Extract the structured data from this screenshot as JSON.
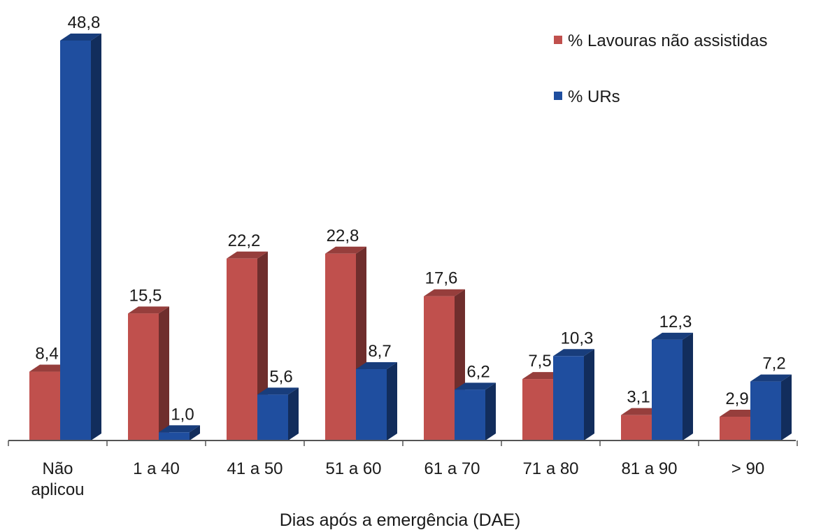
{
  "chart_data": {
    "type": "bar",
    "title": "",
    "xlabel": "Dias após a emergência (DAE)",
    "ylabel": "",
    "ylim": [
      0,
      50
    ],
    "grid": false,
    "legend_position": "top-right",
    "categories": [
      "Não\naplicou",
      "1 a 40",
      "41 a 50",
      "51 a 60",
      "61 a 70",
      "71 a 80",
      "81 a 90",
      "> 90"
    ],
    "series": [
      {
        "name": "% Lavouras não assistidas",
        "color": "#c0504d",
        "values": [
          8.4,
          15.5,
          22.2,
          22.8,
          17.6,
          7.5,
          3.1,
          2.9
        ],
        "labels": [
          "8,4",
          "15,5",
          "22,2",
          "22,8",
          "17,6",
          "7,5",
          "3,1",
          "2,9"
        ]
      },
      {
        "name": "% URs",
        "color": "#1f4e9f",
        "values": [
          48.8,
          1.0,
          5.6,
          8.7,
          6.2,
          10.3,
          12.3,
          7.2
        ],
        "labels": [
          "48,8",
          "1,0",
          "5,6",
          "8,7",
          "6,2",
          "10,3",
          "12,3",
          "7,2"
        ]
      }
    ]
  }
}
